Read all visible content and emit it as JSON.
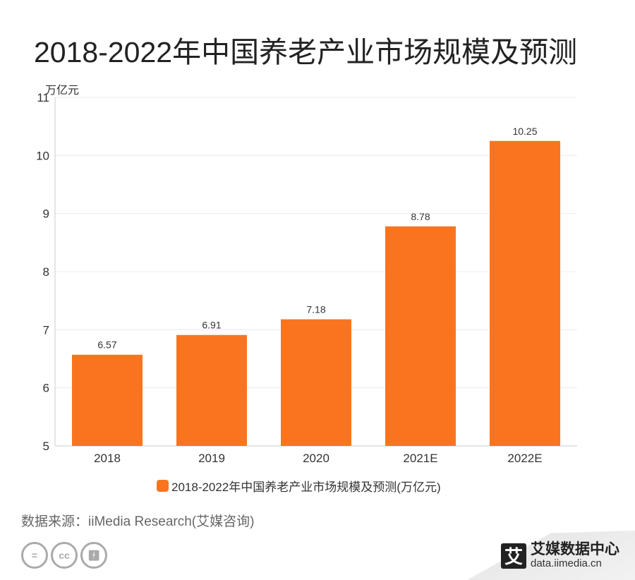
{
  "title": "2018-2022年中国养老产业市场规模及预测",
  "source": "数据来源：iiMedia Research(艾媒咨询)",
  "brand": {
    "name": "艾媒数据中心",
    "url": "data.iimedia.cn",
    "logo_text": "艾"
  },
  "license_icons": [
    "cc-nd-icon",
    "cc-icon",
    "cc-by-icon"
  ],
  "chart_data": {
    "type": "bar",
    "categories": [
      "2018",
      "2019",
      "2020",
      "2021E",
      "2022E"
    ],
    "series": [
      {
        "name": "2018-2022年中国养老产业市场规模及预测(万亿元)",
        "values": [
          6.57,
          6.91,
          7.18,
          8.78,
          10.25
        ],
        "color": "#fa7420"
      }
    ],
    "ylabel": "万亿元",
    "ylim": [
      5,
      11
    ],
    "yticks": [
      5,
      6,
      7,
      8,
      9,
      10,
      11
    ],
    "grid": true,
    "legend": "bottom"
  }
}
